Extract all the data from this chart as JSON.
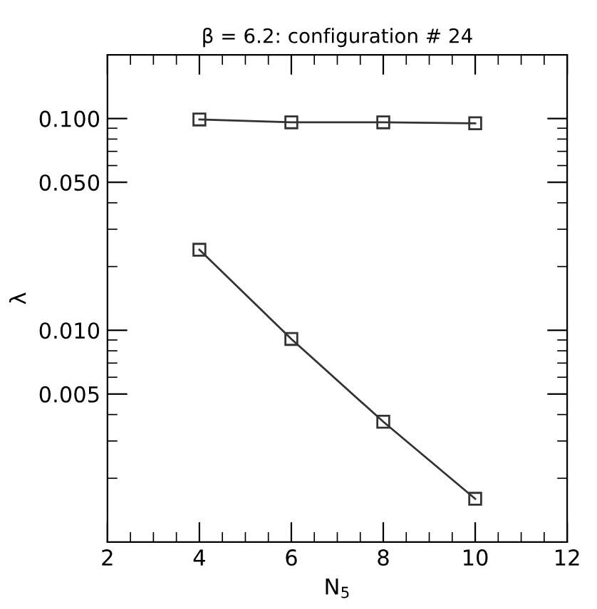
{
  "chart_data": {
    "type": "line",
    "title": "β = 6.2: configuration # 24",
    "xlabel": "N$_{5}$",
    "ylabel": "λ",
    "x": [
      4,
      6,
      8,
      10
    ],
    "series": [
      {
        "color": "#333333",
        "values": [
          0.099,
          0.096,
          0.096,
          0.095
        ]
      },
      {
        "color": "#333333",
        "values": [
          0.024,
          0.0091,
          0.0037,
          0.0016
        ]
      }
    ],
    "log": "y",
    "xlim": [
      2,
      12
    ],
    "ylim": [
      0.001,
      0.2
    ],
    "xticks": [
      2,
      4,
      6,
      8,
      10,
      12
    ],
    "yticks": [
      0.005,
      {
        "value": 0.01,
        "label": "0.010"
      },
      {
        "value": 0.05,
        "label": "0.050"
      },
      {
        "value": 0.1,
        "label": "0.100"
      }
    ],
    "marker": "square",
    "line_style": "solid",
    "grid": false,
    "legend": false
  }
}
